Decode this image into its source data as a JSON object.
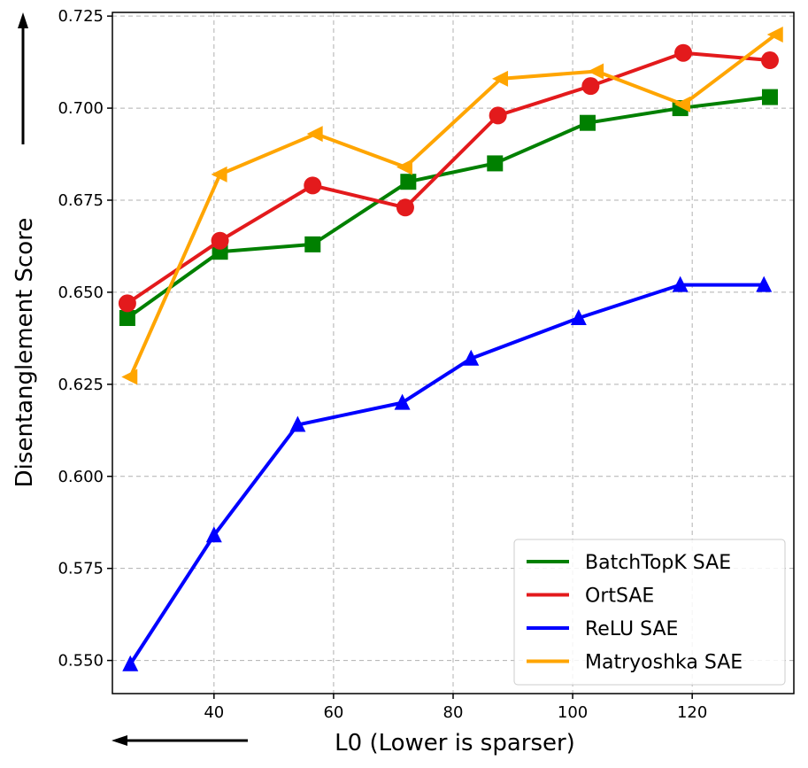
{
  "chart_data": {
    "type": "line",
    "xlabel": "L0 (Lower is sparser)",
    "ylabel": "Disentanglement Score",
    "xlim": [
      23,
      137
    ],
    "ylim": [
      0.541,
      0.726
    ],
    "xticks": [
      40,
      60,
      80,
      100,
      120
    ],
    "xtick_labels": [
      "40",
      "60",
      "80",
      "100",
      "120"
    ],
    "yticks": [
      0.55,
      0.575,
      0.6,
      0.625,
      0.65,
      0.675,
      0.7,
      0.725
    ],
    "ytick_labels": [
      "0.550",
      "0.575",
      "0.600",
      "0.625",
      "0.650",
      "0.675",
      "0.700",
      "0.725"
    ],
    "grid": true,
    "legend_position": "bottom-right",
    "series": [
      {
        "name": "BatchTopK SAE",
        "color": "#008000",
        "marker": "square",
        "x": [
          25.5,
          41,
          56.5,
          72.5,
          87,
          102.5,
          118,
          133
        ],
        "y": [
          0.643,
          0.661,
          0.663,
          0.68,
          0.685,
          0.696,
          0.7,
          0.703
        ]
      },
      {
        "name": "OrtSAE",
        "color": "#e31a1c",
        "marker": "circle",
        "x": [
          25.5,
          41,
          56.5,
          72,
          87.5,
          103,
          118.5,
          133
        ],
        "y": [
          0.647,
          0.664,
          0.679,
          0.673,
          0.698,
          0.706,
          0.715,
          0.713
        ]
      },
      {
        "name": "ReLU SAE",
        "color": "#0000ff",
        "marker": "triangle-up",
        "x": [
          26,
          40,
          54,
          71.5,
          83,
          101,
          118,
          132
        ],
        "y": [
          0.549,
          0.584,
          0.614,
          0.62,
          0.632,
          0.643,
          0.652,
          0.652
        ]
      },
      {
        "name": "Matryoshka SAE",
        "color": "#ffa500",
        "marker": "triangle-left",
        "x": [
          26,
          41,
          57,
          72,
          88,
          104,
          118.5,
          134
        ],
        "y": [
          0.627,
          0.682,
          0.693,
          0.684,
          0.708,
          0.71,
          0.701,
          0.72
        ]
      }
    ]
  }
}
